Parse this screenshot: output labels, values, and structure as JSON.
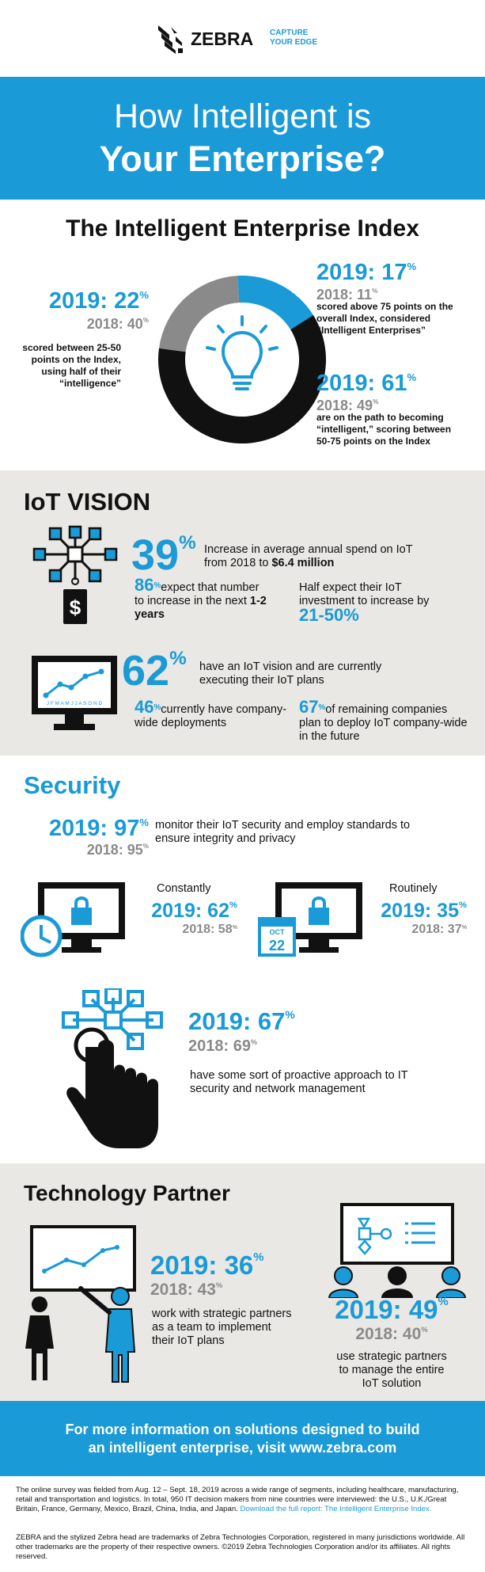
{
  "brand": {
    "name": "ZEBRA",
    "tagline_1": "CAPTURE",
    "tagline_2": "YOUR EDGE"
  },
  "hero": {
    "line1": "How Intelligent is",
    "line2": "Your Enterprise?"
  },
  "index": {
    "title": "The Intelligent Enterprise Index",
    "left": {
      "y2019": "2019: 22",
      "y2018": "2018: 40",
      "pct": "%",
      "desc": "scored between 25-50 points on the Index, using half of their “intelligence”"
    },
    "top_right": {
      "y2019": "2019: 17",
      "y2018": "2018: 11",
      "pct": "%",
      "desc": "scored above 75 points on the overall Index, considered “Intelligent Enterprises”"
    },
    "bottom_right": {
      "y2019": "2019: 61",
      "y2018": "2018: 49",
      "pct": "%",
      "desc": "are on the path to becoming “intelligent,” scoring between 50-75 points on the Index"
    },
    "donut": {
      "blue_share": 0.17,
      "grey_share": 0.22,
      "black_share": 0.61,
      "colors": {
        "blue": "#1a9ad6",
        "grey": "#8a8a8a",
        "black": "#111111"
      }
    }
  },
  "iot": {
    "title": "IoT VISION",
    "stat1": {
      "value": "39",
      "pct": "%",
      "text_a": "Increase in average annual spend on IoT from 2018 to ",
      "text_b": "$6.4 million"
    },
    "stat2": {
      "value": "86",
      "pct": "%",
      "text_a": "expect that number to increase in the next ",
      "text_b": "1-2 years"
    },
    "stat3": {
      "text": "Half expect their IoT investment to increase by",
      "value": "21-50%"
    },
    "stat4": {
      "value": "62",
      "pct": "%",
      "text": "have an IoT vision and are currently executing their IoT plans"
    },
    "stat5": {
      "value": "46",
      "pct": "%",
      "text": "currently have company-wide deployments"
    },
    "stat6": {
      "value": "67",
      "pct": "%",
      "text": "of remaining companies plan to deploy IoT company-wide in the future"
    },
    "monitor_months": "J F M A M J J A S O N D"
  },
  "security": {
    "title": "Security",
    "main": {
      "y2019": "2019: 97",
      "y2018": "2018: 95",
      "pct": "%",
      "desc": "monitor their IoT security and employ standards to ensure integrity and privacy"
    },
    "constantly": {
      "label": "Constantly",
      "y2019": "2019: 62",
      "y2018": "2018: 58",
      "pct": "%"
    },
    "routinely": {
      "label": "Routinely",
      "y2019": "2019: 35",
      "y2018": "2018: 37",
      "pct": "%"
    },
    "calendar": {
      "month": "OCT",
      "day": "22"
    },
    "proactive": {
      "y2019": "2019: 67",
      "y2018": "2018: 69",
      "pct": "%",
      "desc": "have some sort of proactive approach to IT security and network management"
    }
  },
  "partner": {
    "title": "Technology Partner",
    "left": {
      "y2019": "2019: 36",
      "y2018": "2018: 43",
      "pct": "%",
      "desc": "work with strategic partners as a team to implement their IoT plans"
    },
    "right": {
      "y2019": "2019: 49",
      "y2018": "2018: 40",
      "pct": "%",
      "desc": "use strategic partners to manage the entire IoT solution"
    }
  },
  "cta": {
    "line1": "For more information on solutions designed to build",
    "line2": "an intelligent enterprise, visit www.zebra.com"
  },
  "footer": {
    "survey": "The online survey was fielded from Aug. 12 – Sept. 18, 2019 across a wide range of segments, including healthcare, manufacturing, retail and transportation and logistics. In total, 950 IT decision makers from nine countries were interviewed: the U.S., U.K./Great Britain, France, Germany, Mexico, Brazil, China, India, and Japan.",
    "report_link": "Download the full report: The Intelligent Enterprise Index.",
    "trademark": "ZEBRA and the stylized Zebra head are trademarks of Zebra Technologies Corporation, registered in many jurisdictions worldwide. All other trademarks are the property of their respective owners. ©2019 Zebra Technologies Corporation and/or its affiliates. All rights reserved."
  }
}
